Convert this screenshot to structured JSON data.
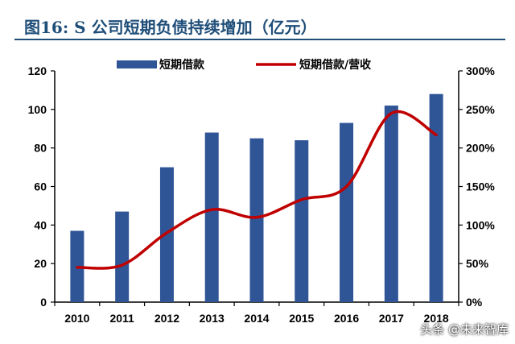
{
  "title": "图16: S 公司短期负债持续增加（亿元）",
  "watermark": "头条 @未来智库",
  "colors": {
    "bar": "#2f5597",
    "line": "#c00000",
    "title": "#1f4e79"
  },
  "chart_data": {
    "type": "bar",
    "categories": [
      "2010",
      "2011",
      "2012",
      "2013",
      "2014",
      "2015",
      "2016",
      "2017",
      "2018"
    ],
    "series": [
      {
        "name": "短期借款",
        "type": "bar",
        "axis": "left",
        "values": [
          37,
          47,
          70,
          88,
          85,
          84,
          93,
          102,
          108
        ]
      },
      {
        "name": "短期借款/营收",
        "type": "line",
        "axis": "right",
        "values": [
          45,
          48,
          90,
          120,
          110,
          133,
          150,
          245,
          217
        ]
      }
    ],
    "y_left": {
      "ticks": [
        "0",
        "20",
        "40",
        "60",
        "80",
        "100",
        "120"
      ],
      "range": [
        0,
        120
      ]
    },
    "y_right": {
      "ticks": [
        "0%",
        "50%",
        "100%",
        "150%",
        "200%",
        "250%",
        "300%"
      ],
      "range": [
        0,
        300
      ]
    },
    "legend_position": "top",
    "grid": false
  }
}
